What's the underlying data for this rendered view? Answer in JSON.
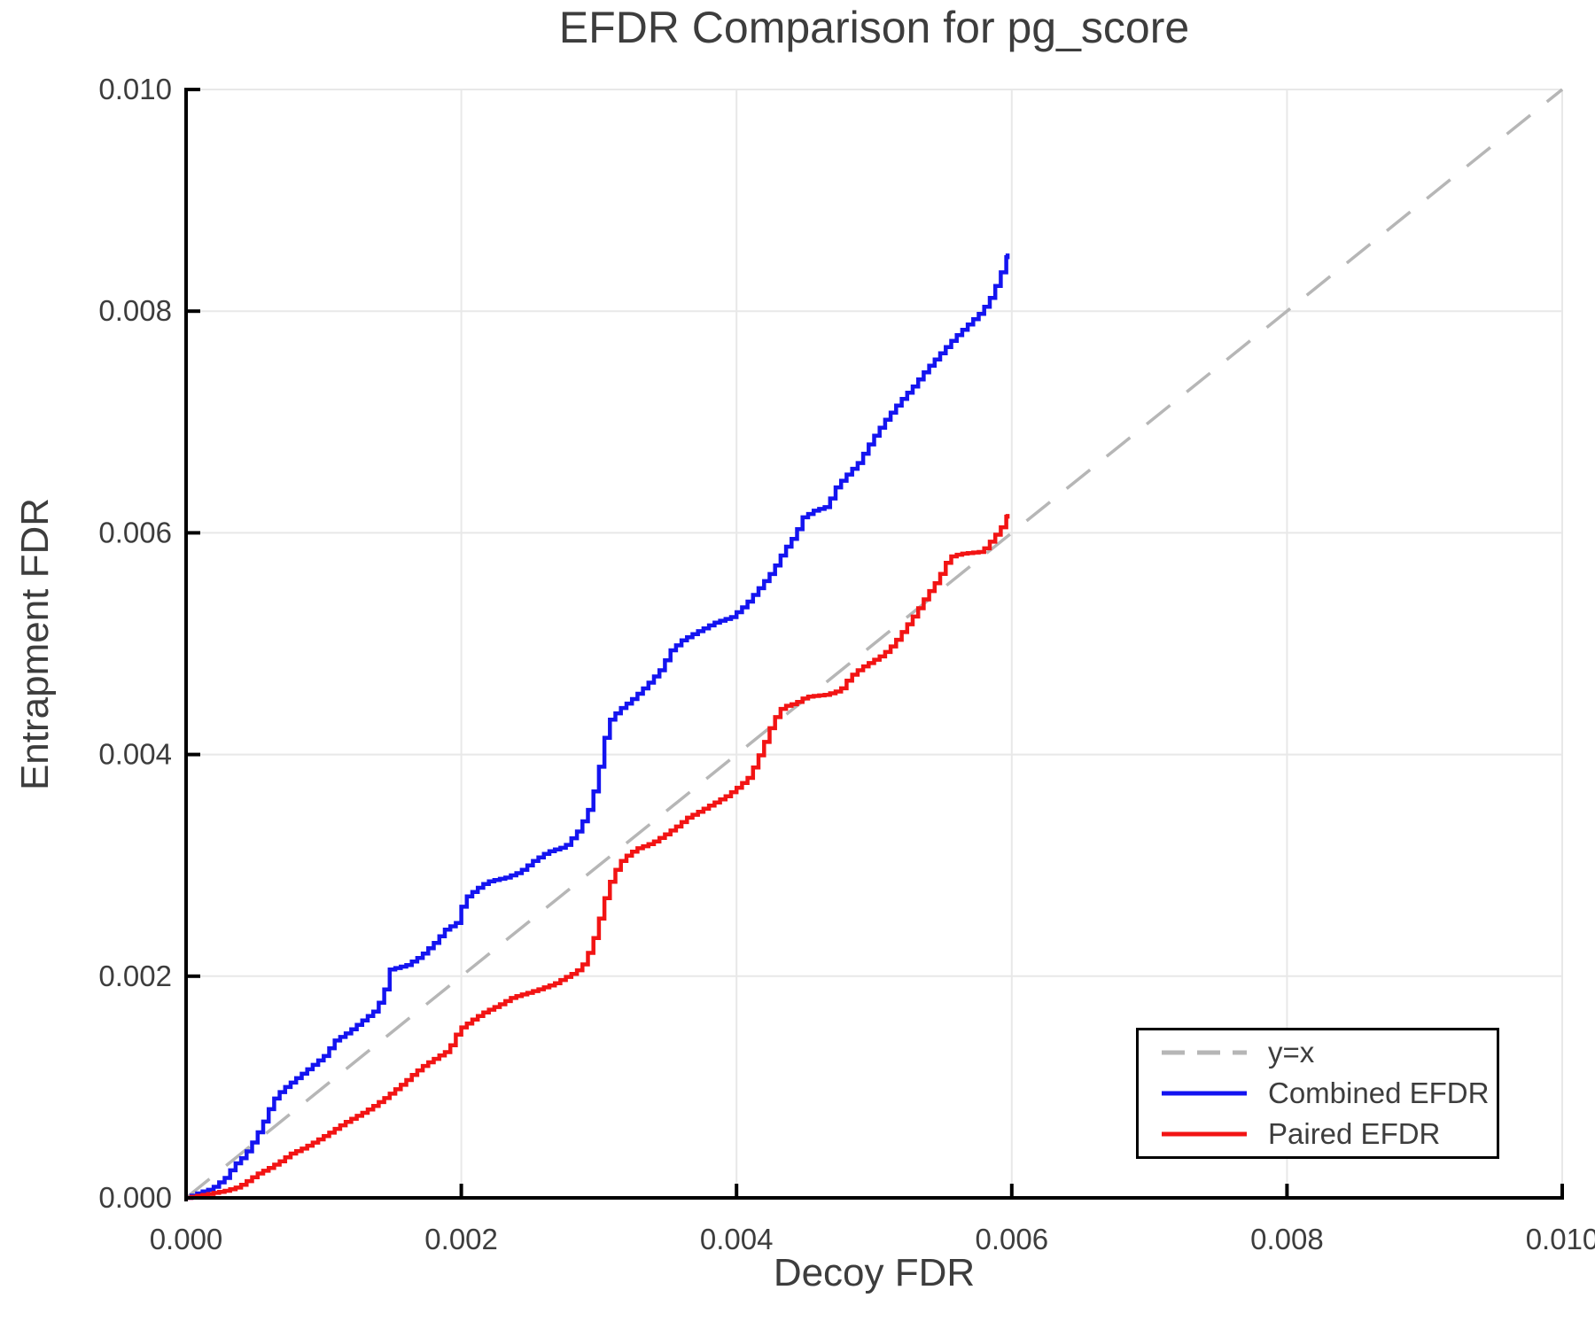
{
  "title": "EFDR Comparison for pg_score",
  "x_axis": {
    "label": "Decoy FDR",
    "tick_labels": [
      "0.000",
      "0.002",
      "0.004",
      "0.006",
      "0.008",
      "0.010"
    ],
    "tick_values": [
      0,
      0.002,
      0.004,
      0.006,
      0.008,
      0.01
    ]
  },
  "y_axis": {
    "label": "Entrapment FDR",
    "tick_labels": [
      "0.000",
      "0.002",
      "0.004",
      "0.006",
      "0.008",
      "0.010"
    ],
    "tick_values": [
      0,
      0.002,
      0.004,
      0.006,
      0.008,
      0.01
    ]
  },
  "colors": {
    "grid": "#e8e8e8",
    "spine": "#000000",
    "text": "#3d3d3d",
    "diagonal": "#b6b6b6",
    "combined": "#1414f0",
    "paired": "#f21414"
  },
  "chart_data": {
    "type": "line",
    "title": "EFDR Comparison for pg_score",
    "xlabel": "Decoy FDR",
    "ylabel": "Entrapment FDR",
    "xlim": [
      0,
      0.01
    ],
    "ylim": [
      0,
      0.01
    ],
    "grid": true,
    "legend_position": "lower right",
    "series": [
      {
        "name": "y=x",
        "style": "dashed",
        "color": "#b6b6b6",
        "points": [
          [
            0,
            0
          ],
          [
            0.01,
            0.01
          ]
        ]
      },
      {
        "name": "Combined EFDR",
        "style": "step",
        "color": "#1414f0",
        "points": [
          [
            0,
            0
          ],
          [
            0.0001,
            5e-05
          ],
          [
            0.00018,
            8e-05
          ],
          [
            0.00028,
            0.00018
          ],
          [
            0.00035,
            0.0003
          ],
          [
            0.00042,
            0.00038
          ],
          [
            0.00048,
            0.0005
          ],
          [
            0.00055,
            0.00066
          ],
          [
            0.0006,
            0.0008
          ],
          [
            0.00065,
            0.00092
          ],
          [
            0.00072,
            0.001
          ],
          [
            0.0008,
            0.00108
          ],
          [
            0.0009,
            0.00118
          ],
          [
            0.001,
            0.00128
          ],
          [
            0.00108,
            0.00142
          ],
          [
            0.00118,
            0.0015
          ],
          [
            0.00128,
            0.0016
          ],
          [
            0.00138,
            0.0017
          ],
          [
            0.00144,
            0.00188
          ],
          [
            0.00148,
            0.00206
          ],
          [
            0.0016,
            0.0021
          ],
          [
            0.0017,
            0.00218
          ],
          [
            0.0018,
            0.0023
          ],
          [
            0.00188,
            0.00242
          ],
          [
            0.00196,
            0.00248
          ],
          [
            0.00202,
            0.0027
          ],
          [
            0.0021,
            0.00278
          ],
          [
            0.00218,
            0.00285
          ],
          [
            0.00232,
            0.00289
          ],
          [
            0.00242,
            0.00294
          ],
          [
            0.00252,
            0.00304
          ],
          [
            0.00262,
            0.00312
          ],
          [
            0.00275,
            0.00317
          ],
          [
            0.00285,
            0.00332
          ],
          [
            0.00292,
            0.0035
          ],
          [
            0.00298,
            0.00375
          ],
          [
            0.00303,
            0.0041
          ],
          [
            0.00307,
            0.0043
          ],
          [
            0.00314,
            0.0044
          ],
          [
            0.00324,
            0.0045
          ],
          [
            0.00334,
            0.00462
          ],
          [
            0.00344,
            0.00476
          ],
          [
            0.00352,
            0.00494
          ],
          [
            0.0036,
            0.00503
          ],
          [
            0.0037,
            0.0051
          ],
          [
            0.00384,
            0.00519
          ],
          [
            0.00396,
            0.00524
          ],
          [
            0.00406,
            0.00535
          ],
          [
            0.00416,
            0.0055
          ],
          [
            0.00426,
            0.00566
          ],
          [
            0.00434,
            0.00584
          ],
          [
            0.00442,
            0.00598
          ],
          [
            0.00448,
            0.00614
          ],
          [
            0.00456,
            0.0062
          ],
          [
            0.00466,
            0.00624
          ],
          [
            0.0047,
            0.00638
          ],
          [
            0.00478,
            0.0065
          ],
          [
            0.00488,
            0.00663
          ],
          [
            0.00498,
            0.00684
          ],
          [
            0.00508,
            0.00702
          ],
          [
            0.00518,
            0.00718
          ],
          [
            0.00528,
            0.00732
          ],
          [
            0.00538,
            0.00748
          ],
          [
            0.00548,
            0.00762
          ],
          [
            0.00558,
            0.00776
          ],
          [
            0.00568,
            0.00788
          ],
          [
            0.00578,
            0.008
          ],
          [
            0.00584,
            0.00812
          ],
          [
            0.0059,
            0.00828
          ],
          [
            0.00594,
            0.00842
          ],
          [
            0.00597,
            0.00852
          ]
        ]
      },
      {
        "name": "Paired EFDR",
        "style": "step",
        "color": "#f21414",
        "points": [
          [
            0,
            0
          ],
          [
            0.00027,
            6e-05
          ],
          [
            0.00038,
            0.0001
          ],
          [
            0.00045,
            0.00016
          ],
          [
            0.00052,
            0.00022
          ],
          [
            0.0006,
            0.00027
          ],
          [
            0.00068,
            0.00033
          ],
          [
            0.00076,
            0.0004
          ],
          [
            0.00085,
            0.00045
          ],
          [
            0.00095,
            0.00052
          ],
          [
            0.00103,
            0.00058
          ],
          [
            0.0011,
            0.00064
          ],
          [
            0.00118,
            0.0007
          ],
          [
            0.00127,
            0.00076
          ],
          [
            0.00135,
            0.00082
          ],
          [
            0.00144,
            0.0009
          ],
          [
            0.00152,
            0.00098
          ],
          [
            0.00158,
            0.00104
          ],
          [
            0.00165,
            0.00112
          ],
          [
            0.00173,
            0.0012
          ],
          [
            0.00182,
            0.00127
          ],
          [
            0.0019,
            0.00133
          ],
          [
            0.00198,
            0.00152
          ],
          [
            0.00207,
            0.0016
          ],
          [
            0.00217,
            0.00168
          ],
          [
            0.00227,
            0.00174
          ],
          [
            0.00237,
            0.00181
          ],
          [
            0.00248,
            0.00185
          ],
          [
            0.00258,
            0.00189
          ],
          [
            0.00267,
            0.00193
          ],
          [
            0.00274,
            0.00198
          ],
          [
            0.00283,
            0.00204
          ],
          [
            0.00289,
            0.00212
          ],
          [
            0.00295,
            0.0023
          ],
          [
            0.003,
            0.00252
          ],
          [
            0.00305,
            0.00275
          ],
          [
            0.0031,
            0.00292
          ],
          [
            0.00317,
            0.00306
          ],
          [
            0.00327,
            0.00315
          ],
          [
            0.00338,
            0.0032
          ],
          [
            0.00347,
            0.00327
          ],
          [
            0.00356,
            0.00335
          ],
          [
            0.00364,
            0.00343
          ],
          [
            0.00373,
            0.00349
          ],
          [
            0.00383,
            0.00356
          ],
          [
            0.00393,
            0.00363
          ],
          [
            0.00401,
            0.00371
          ],
          [
            0.00409,
            0.0038
          ],
          [
            0.00417,
            0.00402
          ],
          [
            0.00426,
            0.0043
          ],
          [
            0.00433,
            0.00443
          ],
          [
            0.00442,
            0.00446
          ],
          [
            0.0045,
            0.00452
          ],
          [
            0.00465,
            0.00454
          ],
          [
            0.00475,
            0.00458
          ],
          [
            0.00482,
            0.0047
          ],
          [
            0.0049,
            0.00478
          ],
          [
            0.00498,
            0.00484
          ],
          [
            0.00506,
            0.0049
          ],
          [
            0.00514,
            0.005
          ],
          [
            0.00522,
            0.00514
          ],
          [
            0.0053,
            0.00528
          ],
          [
            0.00538,
            0.00544
          ],
          [
            0.00546,
            0.00558
          ],
          [
            0.00554,
            0.00578
          ],
          [
            0.00562,
            0.00581
          ],
          [
            0.00578,
            0.00583
          ],
          [
            0.00586,
            0.00595
          ],
          [
            0.00592,
            0.00605
          ],
          [
            0.00597,
            0.00617
          ]
        ]
      }
    ]
  }
}
